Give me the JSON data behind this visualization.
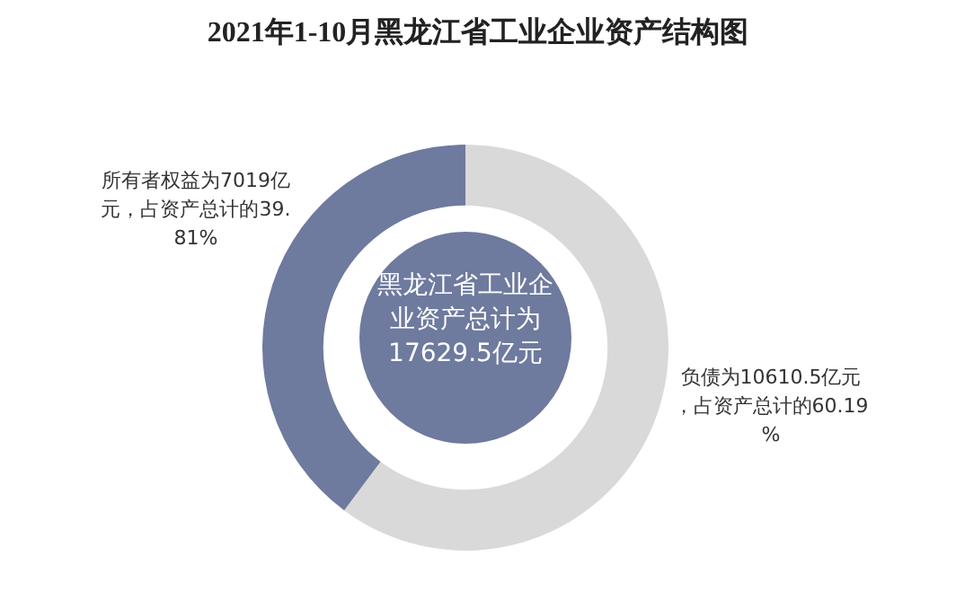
{
  "chart_data": {
    "type": "donut",
    "title": "2021年1-10月黑龙江省工业企业资产结构图",
    "categories": [
      null,
      null
    ],
    "values": [
      10610.5,
      7019
    ],
    "colors": [
      "#d9d9d9",
      "#6e7a9e"
    ],
    "value_labels": [
      "负债为10610.5亿元，占资产总计的60.19%",
      "所有者权益为7019亿元，占资产总计的39.81%"
    ],
    "annotations": [
      "黑龙江省工业企业资产总计为17629.5亿元"
    ],
    "legend": false
  }
}
